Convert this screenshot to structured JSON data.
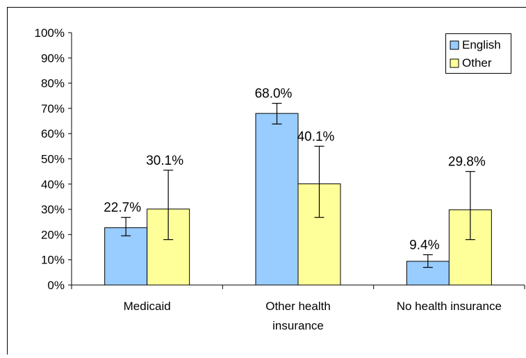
{
  "chart_data": {
    "type": "bar",
    "categories": [
      "Medicaid",
      "Other health insurance",
      "No health insurance"
    ],
    "category_lines": [
      [
        "Medicaid"
      ],
      [
        "Other health",
        "insurance"
      ],
      [
        "No health insurance"
      ]
    ],
    "series": [
      {
        "name": "English",
        "color": "#99ccff",
        "values": [
          22.7,
          68.0,
          9.4
        ],
        "labels": [
          "22.7%",
          "68.0%",
          "9.4%"
        ],
        "error_low": [
          19.5,
          63.8,
          7.0
        ],
        "error_high": [
          26.8,
          72.0,
          12.0
        ]
      },
      {
        "name": "Other",
        "color": "#ffff99",
        "values": [
          30.1,
          40.1,
          29.8
        ],
        "labels": [
          "30.1%",
          "40.1%",
          "29.8%"
        ],
        "error_low": [
          18.0,
          26.8,
          18.0
        ],
        "error_high": [
          45.5,
          55.0,
          45.0
        ]
      }
    ],
    "y_ticks": [
      "0%",
      "10%",
      "20%",
      "30%",
      "40%",
      "50%",
      "60%",
      "70%",
      "80%",
      "90%",
      "100%"
    ],
    "ylim": [
      0,
      100
    ],
    "grid": false,
    "legend_position": "top-right",
    "title": "",
    "xlabel": "",
    "ylabel": ""
  }
}
